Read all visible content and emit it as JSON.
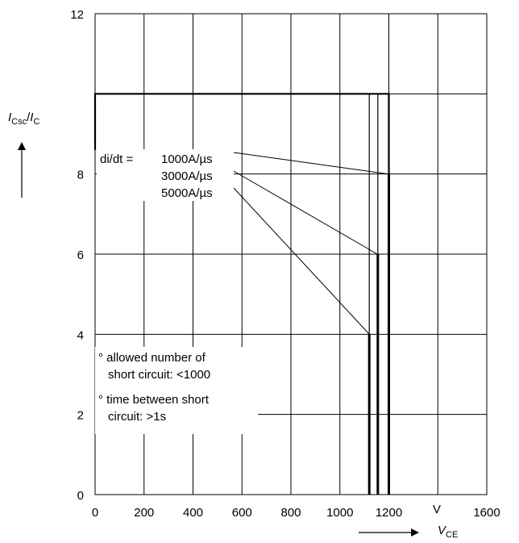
{
  "chart_data": {
    "type": "line",
    "title": "",
    "ylabel": {
      "main": "I",
      "sub": "Csc",
      "slash": "/",
      "main2": "I",
      "sub2": "C"
    },
    "xlabel": {
      "main": "V",
      "sub": "CE"
    },
    "x_unit_label": "V",
    "xlim": [
      0,
      1600
    ],
    "ylim": [
      0,
      12
    ],
    "grid": true,
    "x_ticks": [
      {
        "value": 0,
        "label": "0"
      },
      {
        "value": 200,
        "label": "200"
      },
      {
        "value": 400,
        "label": "400"
      },
      {
        "value": 600,
        "label": "600"
      },
      {
        "value": 800,
        "label": "800"
      },
      {
        "value": 1000,
        "label": "1000"
      },
      {
        "value": 1200,
        "label": "1200"
      },
      {
        "value": 1600,
        "label": "1600"
      }
    ],
    "y_ticks": [
      {
        "value": 0,
        "label": "0"
      },
      {
        "value": 2,
        "label": "2"
      },
      {
        "value": 4,
        "label": "4"
      },
      {
        "value": 6,
        "label": "6"
      },
      {
        "value": 8,
        "label": "8"
      },
      {
        "value": 12,
        "label": "12"
      }
    ],
    "series": [
      {
        "name": "1000A/µs",
        "points": [
          [
            0,
            8.6
          ],
          [
            0,
            10
          ],
          [
            1200,
            10
          ],
          [
            1200,
            0
          ]
        ],
        "boundary": [
          [
            1200,
            8
          ],
          [
            1200,
            0
          ]
        ]
      },
      {
        "name": "3000A/µs",
        "points": [
          [
            1155,
            10
          ],
          [
            1155,
            0
          ]
        ],
        "boundary": [
          [
            1155,
            6
          ],
          [
            1155,
            0
          ]
        ]
      },
      {
        "name": "5000A/µs",
        "points": [
          [
            1120,
            10
          ],
          [
            1120,
            0
          ]
        ],
        "boundary": [
          [
            1120,
            4
          ],
          [
            1120,
            0
          ]
        ]
      }
    ],
    "annotations": {
      "didt_prefix": "di/dt =",
      "note1_line1": "° allowed number of",
      "note1_line2": "short circuit: <1000",
      "note2_line1": "° time between short",
      "note2_line2": "circuit: >1s"
    }
  }
}
